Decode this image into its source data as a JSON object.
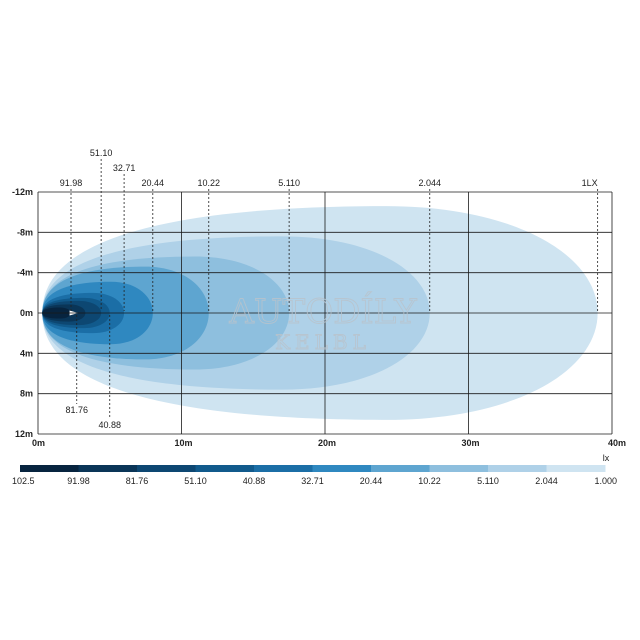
{
  "chart_data": {
    "type": "isolux",
    "unit": "lx",
    "x": {
      "ticks": [
        "0m",
        "10m",
        "20m",
        "30m",
        "40m"
      ],
      "values": [
        0,
        10,
        20,
        30,
        40
      ],
      "range": [
        0,
        40
      ]
    },
    "y": {
      "ticks": [
        "-12m",
        "-8m",
        "-4m",
        "0m",
        "4m",
        "8m",
        "12m"
      ],
      "values": [
        -12,
        -8,
        -4,
        0,
        4,
        8,
        12
      ],
      "range": [
        -12,
        12
      ]
    },
    "grid": true,
    "contours": [
      {
        "label": "1LX",
        "lux": 1.0,
        "reach_m": 39.0,
        "half_width_m": 10.6,
        "color": "#cfe4f1"
      },
      {
        "label": "2.044",
        "lux": 2.044,
        "reach_m": 27.3,
        "half_width_m": 7.6,
        "color": "#afd1e8"
      },
      {
        "label": "5.110",
        "lux": 5.11,
        "reach_m": 17.5,
        "half_width_m": 5.6,
        "color": "#8ebfde"
      },
      {
        "label": "10.22",
        "lux": 10.22,
        "reach_m": 11.9,
        "half_width_m": 4.6,
        "color": "#5ea5d0"
      },
      {
        "label": "20.44",
        "lux": 20.44,
        "reach_m": 8.0,
        "half_width_m": 3.1,
        "color": "#2f88c0"
      },
      {
        "label": "32.71",
        "lux": 32.71,
        "reach_m": 6.0,
        "half_width_m": 2.0,
        "color": "#1b6ea6"
      },
      {
        "label": "40.88",
        "lux": 40.88,
        "reach_m": 5.0,
        "half_width_m": 1.5,
        "color": "#115a8c"
      },
      {
        "label": "51.10",
        "lux": 51.1,
        "reach_m": 4.4,
        "half_width_m": 1.2,
        "color": "#0d4772"
      },
      {
        "label": "81.76",
        "lux": 81.76,
        "reach_m": 3.3,
        "half_width_m": 0.85,
        "color": "#0a3557"
      },
      {
        "label": "91.98",
        "lux": 91.98,
        "reach_m": 2.3,
        "half_width_m": 0.55,
        "color": "#07243f"
      }
    ],
    "top_labels": [
      {
        "text": "91.98",
        "x": 2.3,
        "tier": 1
      },
      {
        "text": "51.10",
        "x": 4.4,
        "tier": 0
      },
      {
        "text": "32.71",
        "x": 6.0,
        "tier": 0.5
      },
      {
        "text": "20.44",
        "x": 8.0,
        "tier": 1
      },
      {
        "text": "10.22",
        "x": 11.9,
        "tier": 1
      },
      {
        "text": "5.110",
        "x": 17.5,
        "tier": 1
      },
      {
        "text": "2.044",
        "x": 27.3,
        "tier": 1
      },
      {
        "text": "1LX",
        "x": 39.0,
        "tier": 1
      }
    ],
    "bottom_labels": [
      {
        "text": "81.76",
        "x": 2.7,
        "tier": 0
      },
      {
        "text": "40.88",
        "x": 5.0,
        "tier": 1
      }
    ],
    "scale": {
      "unit_label": "lx",
      "labels": [
        "102.5",
        "91.98",
        "81.76",
        "51.10",
        "40.88",
        "32.71",
        "20.44",
        "10.22",
        "5.110",
        "2.044",
        "1.000"
      ],
      "colors": [
        "#07243f",
        "#0a3557",
        "#0d4772",
        "#115a8c",
        "#1b6ea6",
        "#2f88c0",
        "#5ea5d0",
        "#8ebfde",
        "#afd1e8",
        "#cfe4f1"
      ]
    },
    "watermark": [
      "AUTODÍLY",
      "KELBL"
    ]
  }
}
